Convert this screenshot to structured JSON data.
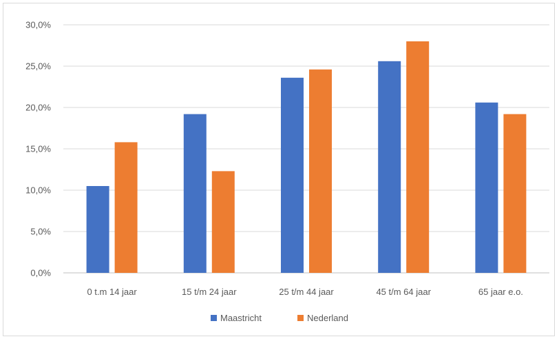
{
  "chart_data": {
    "type": "bar",
    "title": "",
    "xlabel": "",
    "ylabel": "",
    "categories": [
      "0 t.m 14 jaar",
      "15 t/m 24 jaar",
      "25 t/m 44 jaar",
      "45 t/m 64 jaar",
      "65 jaar e.o."
    ],
    "series": [
      {
        "name": "Maastricht",
        "color": "#4472c4",
        "values": [
          10.5,
          19.2,
          23.6,
          25.6,
          20.6
        ]
      },
      {
        "name": "Nederland",
        "color": "#ed7d31",
        "values": [
          15.8,
          12.3,
          24.6,
          28.0,
          19.2
        ]
      }
    ],
    "ylim": [
      0,
      30
    ],
    "yticks": [
      "0,0%",
      "5,0%",
      "10,0%",
      "15,0%",
      "20,0%",
      "25,0%",
      "30,0%"
    ],
    "grid": true,
    "legend_position": "bottom"
  }
}
